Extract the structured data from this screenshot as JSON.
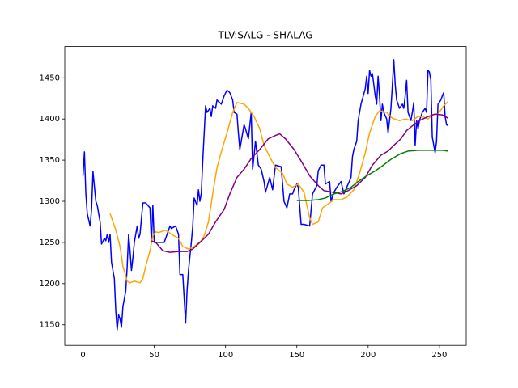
{
  "chart_data": {
    "type": "line",
    "title": "TLV:SALG - SHALAG",
    "xlim": [
      -12.8,
      268.8
    ],
    "ylim": [
      1125,
      1488
    ],
    "xticks": [
      0,
      50,
      100,
      150,
      200,
      250
    ],
    "yticks": [
      1150,
      1200,
      1250,
      1300,
      1350,
      1400,
      1450
    ],
    "series": [
      {
        "color": "#0000ff",
        "x": [
          0,
          1,
          2,
          3,
          5,
          6,
          7,
          9,
          10,
          12,
          13,
          15,
          16,
          17,
          18,
          19,
          20,
          22,
          23,
          24,
          25,
          26,
          27,
          28,
          30,
          31,
          32,
          33,
          34,
          35,
          36,
          38,
          39,
          40,
          42,
          44,
          47,
          48,
          49,
          50,
          52,
          55,
          57,
          59,
          61,
          62,
          65,
          67,
          68,
          70,
          72,
          73,
          74,
          76,
          77,
          78,
          80,
          81,
          82,
          83,
          84,
          86,
          87,
          89,
          90,
          91,
          93,
          94,
          97,
          99,
          101,
          103,
          105,
          106,
          108,
          109,
          110,
          111,
          113,
          114,
          116,
          118,
          119,
          121,
          123,
          125,
          127,
          128,
          131,
          133,
          135,
          139,
          141,
          143,
          145,
          147,
          148,
          150,
          151,
          153,
          155,
          159,
          161,
          164,
          165,
          167,
          169,
          170,
          173,
          174,
          176,
          178,
          181,
          183,
          185,
          188,
          189,
          190,
          192,
          193,
          195,
          198,
          199,
          200,
          201,
          202,
          203,
          205,
          206,
          207,
          208,
          209,
          210,
          211,
          213,
          214,
          216,
          217,
          218,
          219,
          220,
          222,
          224,
          225,
          226,
          227,
          228,
          230,
          231,
          232,
          233,
          234,
          235,
          236,
          238,
          240,
          241,
          242,
          243,
          244,
          245,
          247,
          248,
          249,
          251,
          252,
          253,
          254,
          255,
          256
        ],
        "values": [
          1331,
          1360,
          1309,
          1285,
          1270,
          1290,
          1336,
          1300,
          1295,
          1275,
          1248,
          1255,
          1252,
          1260,
          1250,
          1260,
          1226,
          1206,
          1167,
          1144,
          1162,
          1157,
          1147,
          1172,
          1191,
          1221,
          1260,
          1240,
          1216,
          1231,
          1250,
          1270,
          1255,
          1260,
          1298,
          1298,
          1292,
          1250,
          1295,
          1250,
          1250,
          1250,
          1250,
          1260,
          1270,
          1267,
          1270,
          1260,
          1211,
          1211,
          1152,
          1191,
          1216,
          1250,
          1270,
          1304,
          1295,
          1314,
          1300,
          1310,
          1349,
          1416,
          1408,
          1413,
          1403,
          1416,
          1413,
          1423,
          1418,
          1428,
          1435,
          1432,
          1423,
          1408,
          1406,
          1383,
          1363,
          1373,
          1393,
          1388,
          1376,
          1408,
          1339,
          1373,
          1344,
          1339,
          1324,
          1311,
          1329,
          1314,
          1344,
          1342,
          1300,
          1292,
          1309,
          1309,
          1314,
          1321,
          1317,
          1272,
          1272,
          1270,
          1309,
          1319,
          1337,
          1344,
          1344,
          1321,
          1324,
          1300,
          1311,
          1317,
          1324,
          1309,
          1317,
          1329,
          1354,
          1363,
          1373,
          1398,
          1418,
          1437,
          1452,
          1431,
          1459,
          1452,
          1455,
          1428,
          1418,
          1452,
          1428,
          1398,
          1418,
          1408,
          1400,
          1383,
          1413,
          1441,
          1472,
          1442,
          1423,
          1413,
          1418,
          1413,
          1428,
          1447,
          1408,
          1398,
          1408,
          1420,
          1368,
          1398,
          1388,
          1398,
          1408,
          1413,
          1408,
          1459,
          1457,
          1447,
          1378,
          1359,
          1373,
          1418,
          1423,
          1428,
          1432,
          1403,
          1393,
          1392
        ]
      },
      {
        "color": "#ffa500",
        "x": [
          19,
          23,
          26,
          28,
          31,
          33,
          36,
          40,
          42,
          44,
          47,
          49,
          51,
          53,
          58,
          62,
          67,
          70,
          74,
          78,
          83,
          85,
          88,
          91,
          94,
          98,
          101,
          105,
          108,
          113,
          116,
          120,
          124,
          127,
          131,
          135,
          140,
          143,
          147,
          151,
          155,
          159,
          161,
          165,
          168,
          173,
          176,
          181,
          185,
          190,
          194,
          198,
          201,
          205,
          208,
          213,
          217,
          222,
          226,
          231,
          235,
          238,
          242,
          245,
          249,
          253,
          256
        ],
        "values": [
          1285,
          1265,
          1245,
          1221,
          1203,
          1201,
          1203,
          1201,
          1206,
          1221,
          1240,
          1258,
          1263,
          1262,
          1265,
          1260,
          1255,
          1245,
          1242,
          1245,
          1252,
          1258,
          1275,
          1309,
          1341,
          1366,
          1383,
          1408,
          1420,
          1418,
          1413,
          1403,
          1388,
          1368,
          1354,
          1341,
          1334,
          1321,
          1317,
          1321,
          1311,
          1280,
          1272,
          1275,
          1292,
          1298,
          1302,
          1302,
          1305,
          1314,
          1334,
          1359,
          1383,
          1403,
          1410,
          1408,
          1401,
          1398,
          1400,
          1398,
          1403,
          1403,
          1400,
          1405,
          1406,
          1416,
          1421
        ]
      },
      {
        "color": "#800080",
        "x": [
          48,
          51,
          56,
          61,
          67,
          73,
          77,
          82,
          88,
          93,
          99,
          103,
          108,
          113,
          118,
          124,
          130,
          135,
          138,
          142,
          148,
          153,
          159,
          165,
          169,
          175,
          181,
          186,
          192,
          198,
          203,
          209,
          214,
          218,
          223,
          227,
          232,
          236,
          242,
          247,
          252,
          256
        ],
        "values": [
          1252,
          1250,
          1240,
          1238,
          1239,
          1239,
          1242,
          1250,
          1260,
          1275,
          1290,
          1309,
          1329,
          1339,
          1352,
          1363,
          1376,
          1380,
          1382,
          1376,
          1363,
          1349,
          1331,
          1319,
          1313,
          1311,
          1309,
          1313,
          1319,
          1329,
          1344,
          1356,
          1361,
          1368,
          1376,
          1386,
          1393,
          1398,
          1403,
          1406,
          1405,
          1401
        ]
      },
      {
        "color": "#008000",
        "x": [
          150,
          158,
          165,
          170,
          176,
          182,
          188,
          193,
          199,
          205,
          210,
          216,
          223,
          228,
          235,
          243,
          252,
          256
        ],
        "values": [
          1301,
          1301,
          1302,
          1304,
          1309,
          1312,
          1317,
          1324,
          1331,
          1337,
          1343,
          1351,
          1358,
          1361,
          1362,
          1362,
          1362,
          1361
        ]
      }
    ]
  }
}
